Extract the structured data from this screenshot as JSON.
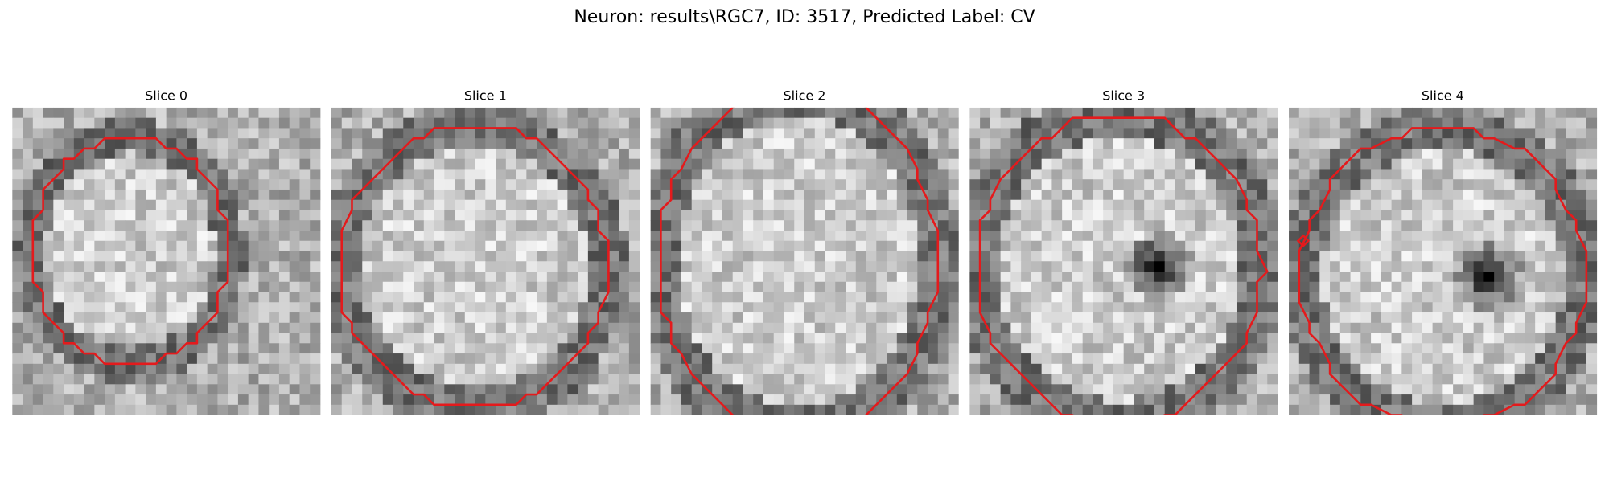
{
  "title": "Neuron: results\\RGC7, ID: 3517, Predicted Label: CV",
  "panels": [
    {
      "title": "Slice 0"
    },
    {
      "title": "Slice 1"
    },
    {
      "title": "Slice 2"
    },
    {
      "title": "Slice 3"
    },
    {
      "title": "Slice 4"
    }
  ]
}
